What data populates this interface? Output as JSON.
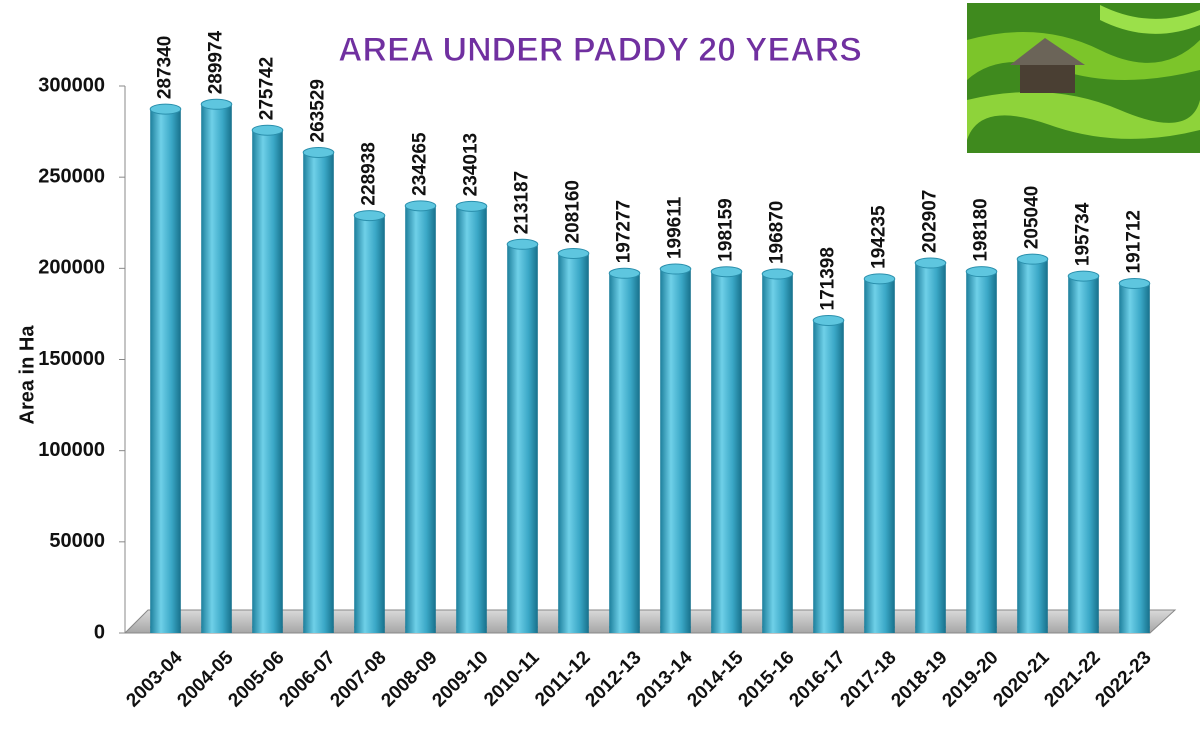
{
  "chart_data": {
    "type": "bar",
    "title": "AREA UNDER PADDY 20 YEARS",
    "y_label": "Area in Ha",
    "categories": [
      "2003-04",
      "2004-05",
      "2005-06",
      "2006-07",
      "2007-08",
      "2008-09",
      "2009-10",
      "2010-11",
      "2011-12",
      "2012-13",
      "2013-14",
      "2014-15",
      "2015-16",
      "2016-17",
      "2017-18",
      "2018-19",
      "2019-20",
      "2020-21",
      "2021-22",
      "2022-23"
    ],
    "values": [
      287340,
      289974,
      275742,
      263529,
      228938,
      234265,
      234013,
      213187,
      208160,
      197277,
      199611,
      198159,
      196870,
      171398,
      194235,
      202907,
      198180,
      205040,
      195734,
      191712
    ],
    "color": "#3aa7c6",
    "ylim": [
      0,
      300000
    ],
    "yticks": [
      0,
      50000,
      100000,
      150000,
      200000,
      250000,
      300000
    ],
    "grid": false
  }
}
